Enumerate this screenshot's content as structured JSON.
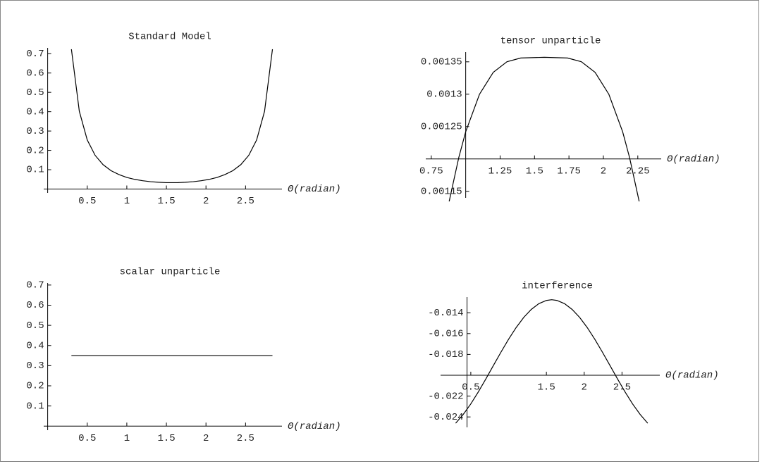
{
  "chart_data": [
    {
      "type": "line",
      "title": "Standard Model",
      "x_label": "Θ(radian)",
      "x": [
        0.3,
        0.4,
        0.5,
        0.6,
        0.7,
        0.8,
        0.9,
        1.0,
        1.1,
        1.2,
        1.3,
        1.4,
        1.5,
        1.57,
        1.64,
        1.74,
        1.84,
        1.94,
        2.04,
        2.14,
        2.24,
        2.34,
        2.44,
        2.54,
        2.64,
        2.74,
        2.84
      ],
      "series": [
        {
          "color": "#000000",
          "values": [
            0.723,
            0.402,
            0.254,
            0.174,
            0.126,
            0.095,
            0.075,
            0.06,
            0.05,
            0.043,
            0.038,
            0.035,
            0.033,
            0.033,
            0.033,
            0.035,
            0.038,
            0.043,
            0.05,
            0.06,
            0.075,
            0.095,
            0.126,
            0.174,
            0.254,
            0.402,
            0.723
          ]
        }
      ],
      "xlim": [
        -0.05,
        2.96
      ],
      "ylim": [
        -0.02,
        0.73
      ],
      "origin": [
        0,
        0
      ],
      "xticks": [
        0.5,
        1,
        1.5,
        2,
        2.5
      ],
      "yticks": [
        0.1,
        0.2,
        0.3,
        0.4,
        0.5,
        0.6,
        0.7
      ]
    },
    {
      "type": "line",
      "title": "tensor unparticle",
      "x_label": "Θ(radian)",
      "x": [
        0.88,
        0.95,
        1.0,
        1.1,
        1.2,
        1.3,
        1.4,
        1.5708,
        1.74,
        1.84,
        1.94,
        2.04,
        2.14,
        2.19,
        2.26
      ],
      "series": [
        {
          "color": "#000000",
          "values": [
            0.0011345,
            0.0012024,
            0.001242,
            0.0012998,
            0.0013337,
            0.0013501,
            0.0013559,
            0.001357,
            0.0013559,
            0.0013501,
            0.0013337,
            0.0012998,
            0.001242,
            0.0012024,
            0.0011345
          ]
        }
      ],
      "xlim": [
        0.71,
        2.42
      ],
      "ylim": [
        0.00114,
        0.001365
      ],
      "origin": [
        1,
        0.0012
      ],
      "xticks": [
        0.75,
        1.25,
        1.5,
        1.75,
        2,
        2.25
      ],
      "yticks": [
        0.00115,
        0.00125,
        0.0013,
        0.00135
      ]
    },
    {
      "type": "line",
      "title": "scalar unparticle",
      "x_label": "Θ(radian)",
      "x": [
        0.3,
        2.84
      ],
      "series": [
        {
          "color": "#000000",
          "values": [
            0.35,
            0.35
          ]
        }
      ],
      "xlim": [
        -0.05,
        2.96
      ],
      "ylim": [
        -0.02,
        0.71
      ],
      "origin": [
        0,
        0
      ],
      "xticks": [
        0.5,
        1,
        1.5,
        2,
        2.5
      ],
      "yticks": [
        0.1,
        0.2,
        0.3,
        0.4,
        0.5,
        0.6,
        0.7
      ]
    },
    {
      "type": "line",
      "title": "interference",
      "x_label": "Θ(radian)",
      "x": [
        0.3,
        0.4,
        0.5,
        0.6,
        0.7,
        0.8,
        0.9,
        1.0,
        1.1,
        1.2,
        1.3,
        1.4,
        1.5,
        1.5708,
        1.64,
        1.74,
        1.84,
        1.94,
        2.04,
        2.14,
        2.24,
        2.34,
        2.44,
        2.54,
        2.64,
        2.74,
        2.84
      ],
      "series": [
        {
          "color": "#000000",
          "values": [
            -0.0246,
            -0.02376,
            -0.02275,
            -0.02159,
            -0.02034,
            -0.01905,
            -0.01777,
            -0.01654,
            -0.01542,
            -0.01445,
            -0.01368,
            -0.01313,
            -0.01282,
            -0.01275,
            -0.01282,
            -0.01313,
            -0.01368,
            -0.01445,
            -0.01542,
            -0.01654,
            -0.01777,
            -0.01905,
            -0.02034,
            -0.02159,
            -0.02275,
            -0.02376,
            -0.0246
          ]
        }
      ],
      "xlim": [
        0.1,
        3.0
      ],
      "ylim": [
        -0.025,
        -0.0125
      ],
      "origin": [
        0.45,
        -0.02
      ],
      "xticks": [
        0.5,
        1.5,
        2,
        2.5
      ],
      "yticks": [
        -0.014,
        -0.016,
        -0.018,
        -0.022,
        -0.024
      ]
    }
  ]
}
